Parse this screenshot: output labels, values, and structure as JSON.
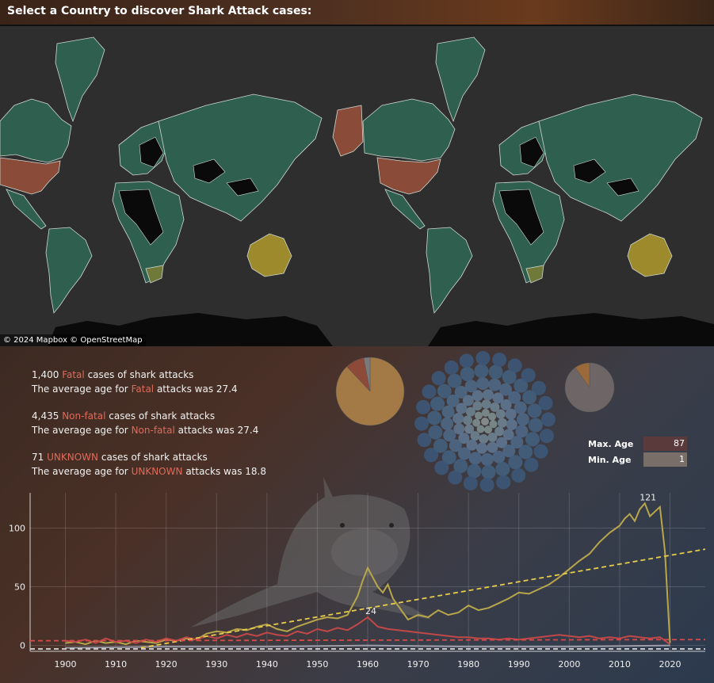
{
  "header": {
    "title": "Select a Country to discover Shark Attack cases:"
  },
  "map": {
    "attribution": "© 2024 Mapbox  © OpenStreetMap"
  },
  "colors": {
    "country_default": "#2f5f4e",
    "country_usa": "#8a4b38",
    "country_australia": "#9c8a2c",
    "country_south_africa": "#6f7a3a",
    "country_nodata": "#0a0a0a",
    "accent_red": "#e06a5a",
    "line_yellow": "#b8a64a",
    "line_red": "#c24848"
  },
  "stats": [
    {
      "count": "1,400",
      "type": "Fatal",
      "cases_suffix": "cases of shark attacks",
      "avg_prefix": "The average age for",
      "avg_suffix": "attacks was 27.4"
    },
    {
      "count": "4,435",
      "type": "Non-fatal",
      "cases_suffix": "cases of shark attacks",
      "avg_prefix": "The average age for",
      "avg_suffix": "attacks was 27.4"
    },
    {
      "count": "71",
      "type": "UNKNOWN",
      "cases_suffix": "cases of shark attacks",
      "avg_prefix": "The average age for",
      "avg_suffix": "attacks was 18.8"
    }
  ],
  "age": {
    "max_label": "Max. Age",
    "max_value": "87",
    "min_label": "Min. Age",
    "min_value": "1"
  },
  "pies": [
    {
      "slices": [
        0.88,
        0.09,
        0.03
      ],
      "colors": [
        "#a37a46",
        "#8e4a38",
        "#7a7a7a"
      ]
    },
    {
      "slices": [
        0.9,
        0.1
      ],
      "colors": [
        "#6e6666",
        "#9a6a3a"
      ]
    }
  ],
  "chart_data": {
    "type": "line",
    "x_ticks": [
      "1900",
      "1910",
      "1920",
      "1930",
      "1940",
      "1950",
      "1960",
      "1970",
      "1980",
      "1990",
      "2000",
      "2010",
      "2020"
    ],
    "y_ticks": [
      "0",
      "50",
      "100"
    ],
    "xlim": [
      1893,
      2027
    ],
    "ylim": [
      -5,
      130
    ],
    "annotations": [
      {
        "x": 1960,
        "y": 24,
        "text": "24"
      },
      {
        "x": 2015,
        "y": 121,
        "text": "121"
      }
    ],
    "series": [
      {
        "color": "#b8a64a",
        "points": [
          [
            1900,
            2
          ],
          [
            1902,
            3
          ],
          [
            1904,
            1
          ],
          [
            1906,
            4
          ],
          [
            1908,
            2
          ],
          [
            1910,
            3
          ],
          [
            1912,
            1
          ],
          [
            1914,
            4
          ],
          [
            1916,
            3
          ],
          [
            1918,
            2
          ],
          [
            1920,
            5
          ],
          [
            1922,
            4
          ],
          [
            1924,
            6
          ],
          [
            1926,
            5
          ],
          [
            1928,
            10
          ],
          [
            1930,
            12
          ],
          [
            1932,
            11
          ],
          [
            1934,
            14
          ],
          [
            1936,
            13
          ],
          [
            1938,
            16
          ],
          [
            1940,
            18
          ],
          [
            1942,
            14
          ],
          [
            1944,
            12
          ],
          [
            1946,
            16
          ],
          [
            1948,
            19
          ],
          [
            1950,
            22
          ],
          [
            1952,
            24
          ],
          [
            1954,
            23
          ],
          [
            1956,
            26
          ],
          [
            1958,
            42
          ],
          [
            1959,
            55
          ],
          [
            1960,
            66
          ],
          [
            1961,
            58
          ],
          [
            1962,
            50
          ],
          [
            1963,
            45
          ],
          [
            1964,
            52
          ],
          [
            1965,
            40
          ],
          [
            1966,
            34
          ],
          [
            1967,
            28
          ],
          [
            1968,
            22
          ],
          [
            1970,
            26
          ],
          [
            1972,
            24
          ],
          [
            1974,
            30
          ],
          [
            1976,
            26
          ],
          [
            1978,
            28
          ],
          [
            1980,
            34
          ],
          [
            1982,
            30
          ],
          [
            1984,
            32
          ],
          [
            1986,
            36
          ],
          [
            1988,
            40
          ],
          [
            1990,
            45
          ],
          [
            1992,
            44
          ],
          [
            1994,
            48
          ],
          [
            1996,
            52
          ],
          [
            1998,
            58
          ],
          [
            2000,
            65
          ],
          [
            2002,
            72
          ],
          [
            2004,
            78
          ],
          [
            2006,
            88
          ],
          [
            2008,
            96
          ],
          [
            2010,
            102
          ],
          [
            2011,
            108
          ],
          [
            2012,
            112
          ],
          [
            2013,
            106
          ],
          [
            2014,
            116
          ],
          [
            2015,
            121
          ],
          [
            2016,
            110
          ],
          [
            2017,
            114
          ],
          [
            2018,
            118
          ],
          [
            2019,
            80
          ],
          [
            2020,
            2
          ]
        ]
      },
      {
        "color": "#c24848",
        "points": [
          [
            1900,
            4
          ],
          [
            1902,
            3
          ],
          [
            1904,
            5
          ],
          [
            1906,
            2
          ],
          [
            1908,
            6
          ],
          [
            1910,
            3
          ],
          [
            1912,
            4
          ],
          [
            1914,
            2
          ],
          [
            1916,
            5
          ],
          [
            1918,
            3
          ],
          [
            1920,
            6
          ],
          [
            1922,
            4
          ],
          [
            1924,
            7
          ],
          [
            1926,
            5
          ],
          [
            1928,
            8
          ],
          [
            1930,
            6
          ],
          [
            1932,
            9
          ],
          [
            1934,
            7
          ],
          [
            1936,
            10
          ],
          [
            1938,
            8
          ],
          [
            1940,
            11
          ],
          [
            1942,
            9
          ],
          [
            1944,
            8
          ],
          [
            1946,
            12
          ],
          [
            1948,
            10
          ],
          [
            1950,
            14
          ],
          [
            1952,
            12
          ],
          [
            1954,
            15
          ],
          [
            1956,
            13
          ],
          [
            1958,
            18
          ],
          [
            1960,
            24
          ],
          [
            1962,
            16
          ],
          [
            1964,
            14
          ],
          [
            1966,
            13
          ],
          [
            1968,
            12
          ],
          [
            1970,
            11
          ],
          [
            1972,
            10
          ],
          [
            1974,
            9
          ],
          [
            1976,
            8
          ],
          [
            1978,
            7
          ],
          [
            1980,
            7
          ],
          [
            1982,
            6
          ],
          [
            1984,
            6
          ],
          [
            1986,
            5
          ],
          [
            1988,
            6
          ],
          [
            1990,
            5
          ],
          [
            1992,
            6
          ],
          [
            1994,
            7
          ],
          [
            1996,
            8
          ],
          [
            1998,
            9
          ],
          [
            2000,
            8
          ],
          [
            2002,
            7
          ],
          [
            2004,
            8
          ],
          [
            2006,
            6
          ],
          [
            2008,
            7
          ],
          [
            2010,
            6
          ],
          [
            2012,
            8
          ],
          [
            2014,
            7
          ],
          [
            2016,
            6
          ],
          [
            2018,
            7
          ],
          [
            2020,
            1
          ]
        ]
      },
      {
        "color": "#9a9aa6",
        "points": [
          [
            1900,
            -2
          ],
          [
            1920,
            -1
          ],
          [
            1940,
            -1
          ],
          [
            1960,
            0
          ],
          [
            1980,
            -1
          ],
          [
            2000,
            -1
          ],
          [
            2020,
            0
          ]
        ]
      }
    ],
    "trend_lines": [
      {
        "color": "#e8cc4a",
        "from": [
          1915,
          -2
        ],
        "to": [
          2027,
          82
        ]
      },
      {
        "color": "#d84a4a",
        "from": [
          1893,
          4
        ],
        "to": [
          2027,
          5
        ]
      },
      {
        "color": "#dddddd",
        "from": [
          1893,
          -3
        ],
        "to": [
          2027,
          -3
        ]
      }
    ]
  }
}
